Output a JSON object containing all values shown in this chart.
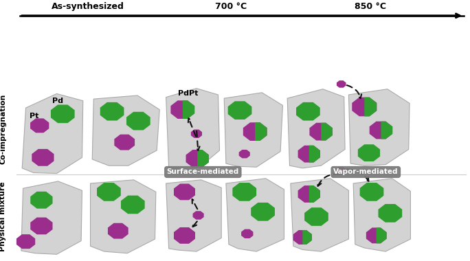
{
  "col_labels": [
    "As-synthesized",
    "700 °C",
    "850 °C"
  ],
  "row_labels": [
    "Co-impregnation",
    "Physical mixture"
  ],
  "bg_color": "#ffffff",
  "support_color": "#d3d3d3",
  "pd_color": "#2e9e2e",
  "pt_color": "#9b2d8c",
  "arrow_color": "#111111",
  "surface_mediated_label": "Surface-mediated",
  "vapor_mediated_label": "Vapor-mediated",
  "pdpt_label": "PdPt",
  "pt_label": "Pt",
  "pd_label": "Pd",
  "figsize": [
    6.84,
    3.8
  ],
  "dpi": 100
}
